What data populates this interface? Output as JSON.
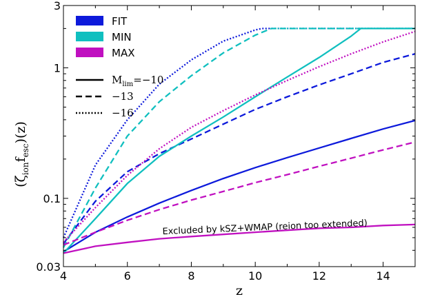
{
  "chart_data": {
    "type": "line",
    "xlabel": "z",
    "ylabel": "(ζ_ion f_esc)(z)",
    "xlim": [
      4,
      15
    ],
    "ylim": [
      0.03,
      3
    ],
    "yscale": "log",
    "xticks": [
      "4",
      "6",
      "8",
      "10",
      "12",
      "14"
    ],
    "yticks": [
      {
        "value": 0.03,
        "label": "0.03"
      },
      {
        "value": 0.1,
        "label": "0.1"
      },
      {
        "value": 1,
        "label": "1"
      },
      {
        "value": 3,
        "label": "3"
      }
    ],
    "colors": {
      "FIT": "#0d1adb",
      "MIN": "#10bfbf",
      "MAX": "#c010c0"
    },
    "legend_models": [
      {
        "name": "FIT",
        "color": "#0d1adb"
      },
      {
        "name": "MIN",
        "color": "#10bfbf"
      },
      {
        "name": "MAX",
        "color": "#c010c0"
      }
    ],
    "legend_styles": [
      {
        "label_base": "M",
        "label_sub": "lim",
        "label_rest": "=−10",
        "dash": "solid"
      },
      {
        "label_base": "−13",
        "label_sub": "",
        "label_rest": "",
        "dash": "dashed"
      },
      {
        "label_base": "−16",
        "label_sub": "",
        "label_rest": "",
        "dash": "dotted"
      }
    ],
    "series": [
      {
        "model": "FIT",
        "mlim": "-10",
        "dash": "solid",
        "x": [
          4,
          5,
          6,
          7,
          8,
          9,
          10,
          11,
          12,
          13,
          14,
          15
        ],
        "y": [
          0.039,
          0.055,
          0.072,
          0.092,
          0.115,
          0.142,
          0.172,
          0.205,
          0.243,
          0.288,
          0.34,
          0.395
        ]
      },
      {
        "model": "FIT",
        "mlim": "-13",
        "dash": "dashed",
        "x": [
          4,
          5,
          6,
          7,
          8,
          9,
          10,
          11,
          12,
          13,
          14,
          15
        ],
        "y": [
          0.045,
          0.095,
          0.16,
          0.22,
          0.285,
          0.37,
          0.48,
          0.6,
          0.74,
          0.9,
          1.1,
          1.28
        ]
      },
      {
        "model": "FIT",
        "mlim": "-16",
        "dash": "dotted",
        "x": [
          4,
          5,
          6,
          7,
          8,
          9,
          10,
          10.2,
          11,
          12,
          13,
          14,
          15
        ],
        "y": [
          0.05,
          0.18,
          0.4,
          0.75,
          1.15,
          1.6,
          1.95,
          2.0,
          2.0,
          2.0,
          2.0,
          2.0,
          2.0
        ]
      },
      {
        "model": "MIN",
        "mlim": "-10",
        "dash": "solid",
        "x": [
          4,
          5,
          6,
          7,
          8,
          9,
          10,
          11,
          12,
          13,
          13.3,
          14,
          15
        ],
        "y": [
          0.038,
          0.07,
          0.13,
          0.21,
          0.3,
          0.42,
          0.6,
          0.85,
          1.2,
          1.75,
          2.0,
          2.0,
          2.0
        ]
      },
      {
        "model": "MIN",
        "mlim": "-13",
        "dash": "dashed",
        "x": [
          4,
          5,
          6,
          7,
          8,
          9,
          10,
          10.5,
          11,
          12,
          13,
          14,
          15
        ],
        "y": [
          0.042,
          0.12,
          0.3,
          0.55,
          0.87,
          1.3,
          1.78,
          2.0,
          2.0,
          2.0,
          2.0,
          2.0,
          2.0
        ]
      },
      {
        "model": "MIN",
        "mlim": "-16",
        "dash": "dotted",
        "x": [
          10.6,
          11,
          12,
          13,
          14,
          15
        ],
        "y": [
          2.0,
          2.0,
          2.0,
          2.0,
          2.0,
          2.0
        ]
      },
      {
        "model": "MAX",
        "mlim": "-10",
        "dash": "solid",
        "x": [
          4,
          5,
          6,
          7,
          8,
          9,
          10,
          11,
          12,
          13,
          14,
          15
        ],
        "y": [
          0.038,
          0.043,
          0.046,
          0.049,
          0.051,
          0.053,
          0.055,
          0.057,
          0.059,
          0.06,
          0.062,
          0.063
        ]
      },
      {
        "model": "MAX",
        "mlim": "-13",
        "dash": "dashed",
        "x": [
          4,
          5,
          6,
          7,
          8,
          9,
          10,
          11,
          12,
          13,
          14,
          15
        ],
        "y": [
          0.044,
          0.055,
          0.068,
          0.082,
          0.097,
          0.113,
          0.132,
          0.152,
          0.176,
          0.203,
          0.235,
          0.27
        ]
      },
      {
        "model": "MAX",
        "mlim": "-16",
        "dash": "dotted",
        "x": [
          4,
          5,
          6,
          7,
          8,
          9,
          10,
          11,
          12,
          13,
          14,
          15
        ],
        "y": [
          0.046,
          0.085,
          0.15,
          0.24,
          0.35,
          0.47,
          0.62,
          0.8,
          1.02,
          1.28,
          1.58,
          1.9
        ]
      }
    ],
    "annotation": "Excluded by kSZ+WMAP (reion too extended)"
  }
}
